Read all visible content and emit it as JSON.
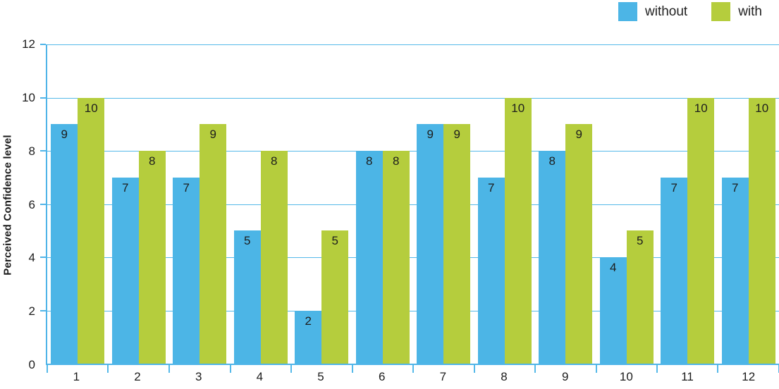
{
  "chart_data": {
    "type": "bar",
    "title": "",
    "xlabel": "",
    "ylabel": "Perceived Confidence level",
    "categories": [
      "1",
      "2",
      "3",
      "4",
      "5",
      "6",
      "7",
      "8",
      "9",
      "10",
      "11",
      "12"
    ],
    "series": [
      {
        "name": "without",
        "color": "#4CB5E6",
        "values": [
          9,
          7,
          7,
          5,
          2,
          8,
          9,
          7,
          8,
          4,
          7,
          7
        ]
      },
      {
        "name": "with",
        "color": "#B5CD3D",
        "values": [
          10,
          8,
          9,
          8,
          5,
          8,
          9,
          10,
          9,
          5,
          10,
          10
        ]
      }
    ],
    "ylim": [
      0,
      12
    ],
    "yticks": [
      0,
      2,
      4,
      6,
      8,
      10,
      12
    ],
    "grid": true,
    "data_labels": true,
    "legend_position": "top-right",
    "colors": {
      "axis": "#4FB4E8",
      "gridline": "#55B9E9",
      "text": "#1c1c1c"
    }
  }
}
